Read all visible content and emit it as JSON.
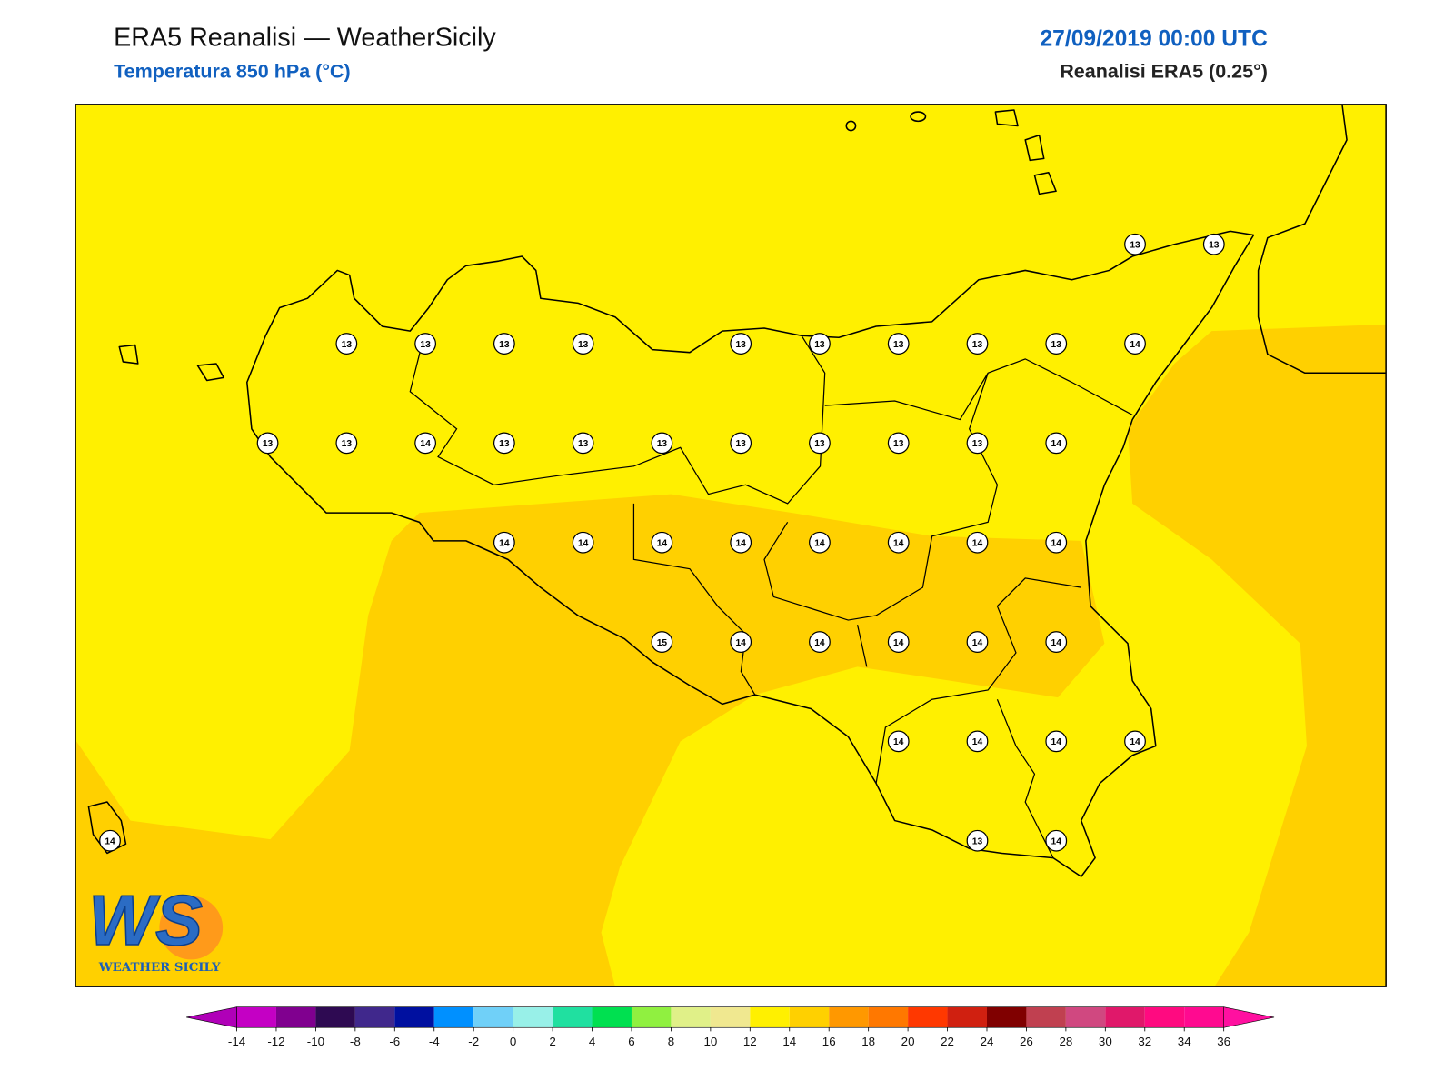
{
  "header": {
    "title": "ERA5 Reanalisi — WeatherSicily",
    "subtitle": "Temperatura 850 hPa (°C)",
    "datetime": "27/09/2019 00:00 UTC",
    "source": "Reanalisi ERA5 (0.25°)"
  },
  "stations": [
    13,
    13,
    13,
    13,
    13,
    13,
    13,
    13,
    13,
    13,
    13,
    14,
    13,
    13,
    14,
    13,
    13,
    13,
    13,
    13,
    13,
    13,
    14,
    14,
    14,
    14,
    14,
    14,
    14,
    14,
    14,
    15,
    14,
    14,
    14,
    14,
    14,
    14,
    14,
    14,
    14,
    14,
    13,
    14
  ],
  "colorbar": {
    "ticks": [
      -14,
      -12,
      -10,
      -8,
      -6,
      -4,
      -2,
      0,
      2,
      4,
      6,
      8,
      10,
      12,
      14,
      16,
      18,
      20,
      22,
      24,
      26,
      28,
      30,
      32,
      34,
      36
    ],
    "colors": [
      "#c400c4",
      "#80008f",
      "#2e0a52",
      "#40288c",
      "#0010a0",
      "#0090ff",
      "#70d0f8",
      "#98f0e8",
      "#20e0a0",
      "#00e050",
      "#90f040",
      "#e0f088",
      "#f0e890",
      "#fff000",
      "#ffd000",
      "#ff9800",
      "#ff7800",
      "#ff3800",
      "#d02010",
      "#800000",
      "#c04050",
      "#d04880",
      "#e0186a",
      "#ff0a80",
      "#ff0a90"
    ],
    "under": "#b000b8",
    "over": "#ff10a0"
  },
  "logo": {
    "mark": "WS",
    "text": "WEATHER SICILY"
  }
}
